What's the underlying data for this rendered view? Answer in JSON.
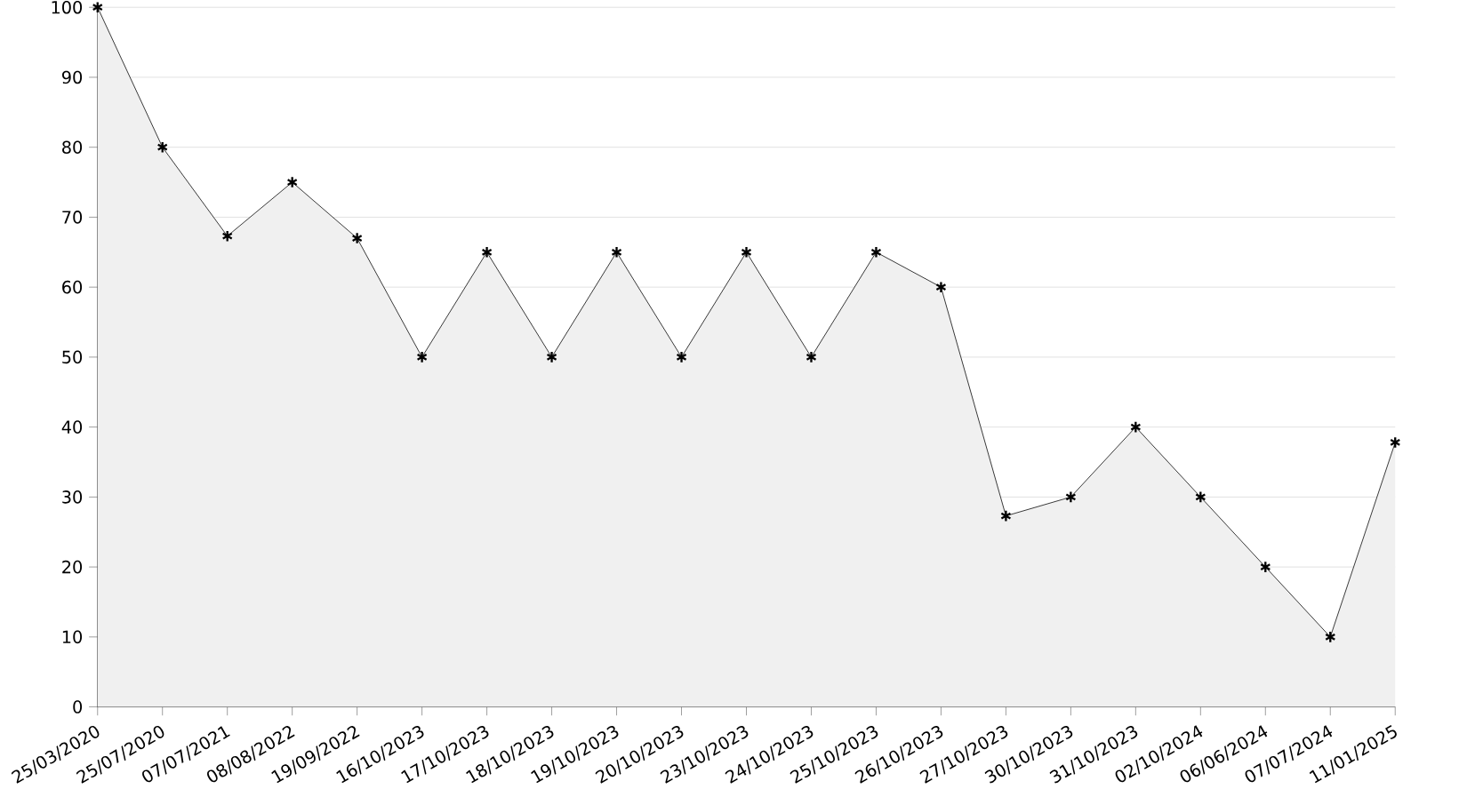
{
  "chart_data": {
    "type": "area",
    "categories": [
      "25/03/2020",
      "25/07/2020",
      "07/07/2021",
      "08/08/2022",
      "19/09/2022",
      "16/10/2023",
      "17/10/2023",
      "18/10/2023",
      "19/10/2023",
      "20/10/2023",
      "23/10/2023",
      "24/10/2023",
      "25/10/2023",
      "26/10/2023",
      "27/10/2023",
      "30/10/2023",
      "31/10/2023",
      "02/10/2024",
      "06/06/2024",
      "07/07/2024",
      "11/01/2025"
    ],
    "series": [
      {
        "color": "#000000",
        "values": [
          100,
          80,
          67.3,
          75,
          67,
          50,
          65,
          50,
          65,
          50,
          65,
          50,
          65,
          60,
          27.3,
          30,
          40,
          30,
          20,
          10,
          37.8
        ]
      }
    ],
    "ylim": [
      0,
      100
    ],
    "yticks": [
      0,
      10,
      20,
      30,
      40,
      50,
      60,
      70,
      80,
      90,
      100
    ],
    "grid": "y",
    "marker": "cross",
    "line_style": "solid"
  }
}
